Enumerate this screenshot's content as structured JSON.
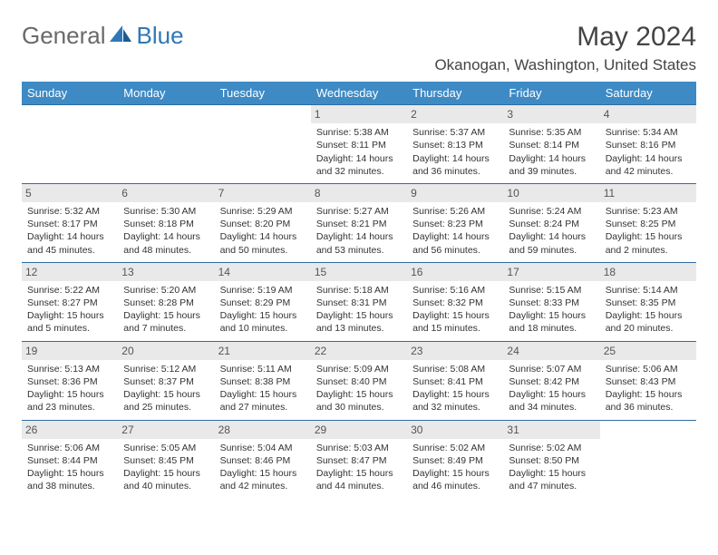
{
  "logo": {
    "general": "General",
    "blue": "Blue"
  },
  "title": "May 2024",
  "location": "Okanogan, Washington, United States",
  "colors": {
    "header_bg": "#3e8ac4",
    "header_text": "#ffffff",
    "border": "#2f6da3",
    "daynum_bg": "#e9e9e9",
    "daynum_text": "#555555",
    "body_text": "#333333",
    "title_text": "#444444",
    "logo_general": "#6a6a6a",
    "logo_blue": "#2f78b7"
  },
  "weekdays": [
    "Sunday",
    "Monday",
    "Tuesday",
    "Wednesday",
    "Thursday",
    "Friday",
    "Saturday"
  ],
  "weeks": [
    [
      {
        "day": "",
        "lines": []
      },
      {
        "day": "",
        "lines": []
      },
      {
        "day": "",
        "lines": []
      },
      {
        "day": "1",
        "lines": [
          "Sunrise: 5:38 AM",
          "Sunset: 8:11 PM",
          "Daylight: 14 hours and 32 minutes."
        ]
      },
      {
        "day": "2",
        "lines": [
          "Sunrise: 5:37 AM",
          "Sunset: 8:13 PM",
          "Daylight: 14 hours and 36 minutes."
        ]
      },
      {
        "day": "3",
        "lines": [
          "Sunrise: 5:35 AM",
          "Sunset: 8:14 PM",
          "Daylight: 14 hours and 39 minutes."
        ]
      },
      {
        "day": "4",
        "lines": [
          "Sunrise: 5:34 AM",
          "Sunset: 8:16 PM",
          "Daylight: 14 hours and 42 minutes."
        ]
      }
    ],
    [
      {
        "day": "5",
        "lines": [
          "Sunrise: 5:32 AM",
          "Sunset: 8:17 PM",
          "Daylight: 14 hours and 45 minutes."
        ]
      },
      {
        "day": "6",
        "lines": [
          "Sunrise: 5:30 AM",
          "Sunset: 8:18 PM",
          "Daylight: 14 hours and 48 minutes."
        ]
      },
      {
        "day": "7",
        "lines": [
          "Sunrise: 5:29 AM",
          "Sunset: 8:20 PM",
          "Daylight: 14 hours and 50 minutes."
        ]
      },
      {
        "day": "8",
        "lines": [
          "Sunrise: 5:27 AM",
          "Sunset: 8:21 PM",
          "Daylight: 14 hours and 53 minutes."
        ]
      },
      {
        "day": "9",
        "lines": [
          "Sunrise: 5:26 AM",
          "Sunset: 8:23 PM",
          "Daylight: 14 hours and 56 minutes."
        ]
      },
      {
        "day": "10",
        "lines": [
          "Sunrise: 5:24 AM",
          "Sunset: 8:24 PM",
          "Daylight: 14 hours and 59 minutes."
        ]
      },
      {
        "day": "11",
        "lines": [
          "Sunrise: 5:23 AM",
          "Sunset: 8:25 PM",
          "Daylight: 15 hours and 2 minutes."
        ]
      }
    ],
    [
      {
        "day": "12",
        "lines": [
          "Sunrise: 5:22 AM",
          "Sunset: 8:27 PM",
          "Daylight: 15 hours and 5 minutes."
        ]
      },
      {
        "day": "13",
        "lines": [
          "Sunrise: 5:20 AM",
          "Sunset: 8:28 PM",
          "Daylight: 15 hours and 7 minutes."
        ]
      },
      {
        "day": "14",
        "lines": [
          "Sunrise: 5:19 AM",
          "Sunset: 8:29 PM",
          "Daylight: 15 hours and 10 minutes."
        ]
      },
      {
        "day": "15",
        "lines": [
          "Sunrise: 5:18 AM",
          "Sunset: 8:31 PM",
          "Daylight: 15 hours and 13 minutes."
        ]
      },
      {
        "day": "16",
        "lines": [
          "Sunrise: 5:16 AM",
          "Sunset: 8:32 PM",
          "Daylight: 15 hours and 15 minutes."
        ]
      },
      {
        "day": "17",
        "lines": [
          "Sunrise: 5:15 AM",
          "Sunset: 8:33 PM",
          "Daylight: 15 hours and 18 minutes."
        ]
      },
      {
        "day": "18",
        "lines": [
          "Sunrise: 5:14 AM",
          "Sunset: 8:35 PM",
          "Daylight: 15 hours and 20 minutes."
        ]
      }
    ],
    [
      {
        "day": "19",
        "lines": [
          "Sunrise: 5:13 AM",
          "Sunset: 8:36 PM",
          "Daylight: 15 hours and 23 minutes."
        ]
      },
      {
        "day": "20",
        "lines": [
          "Sunrise: 5:12 AM",
          "Sunset: 8:37 PM",
          "Daylight: 15 hours and 25 minutes."
        ]
      },
      {
        "day": "21",
        "lines": [
          "Sunrise: 5:11 AM",
          "Sunset: 8:38 PM",
          "Daylight: 15 hours and 27 minutes."
        ]
      },
      {
        "day": "22",
        "lines": [
          "Sunrise: 5:09 AM",
          "Sunset: 8:40 PM",
          "Daylight: 15 hours and 30 minutes."
        ]
      },
      {
        "day": "23",
        "lines": [
          "Sunrise: 5:08 AM",
          "Sunset: 8:41 PM",
          "Daylight: 15 hours and 32 minutes."
        ]
      },
      {
        "day": "24",
        "lines": [
          "Sunrise: 5:07 AM",
          "Sunset: 8:42 PM",
          "Daylight: 15 hours and 34 minutes."
        ]
      },
      {
        "day": "25",
        "lines": [
          "Sunrise: 5:06 AM",
          "Sunset: 8:43 PM",
          "Daylight: 15 hours and 36 minutes."
        ]
      }
    ],
    [
      {
        "day": "26",
        "lines": [
          "Sunrise: 5:06 AM",
          "Sunset: 8:44 PM",
          "Daylight: 15 hours and 38 minutes."
        ]
      },
      {
        "day": "27",
        "lines": [
          "Sunrise: 5:05 AM",
          "Sunset: 8:45 PM",
          "Daylight: 15 hours and 40 minutes."
        ]
      },
      {
        "day": "28",
        "lines": [
          "Sunrise: 5:04 AM",
          "Sunset: 8:46 PM",
          "Daylight: 15 hours and 42 minutes."
        ]
      },
      {
        "day": "29",
        "lines": [
          "Sunrise: 5:03 AM",
          "Sunset: 8:47 PM",
          "Daylight: 15 hours and 44 minutes."
        ]
      },
      {
        "day": "30",
        "lines": [
          "Sunrise: 5:02 AM",
          "Sunset: 8:49 PM",
          "Daylight: 15 hours and 46 minutes."
        ]
      },
      {
        "day": "31",
        "lines": [
          "Sunrise: 5:02 AM",
          "Sunset: 8:50 PM",
          "Daylight: 15 hours and 47 minutes."
        ]
      },
      {
        "day": "",
        "lines": []
      }
    ]
  ]
}
